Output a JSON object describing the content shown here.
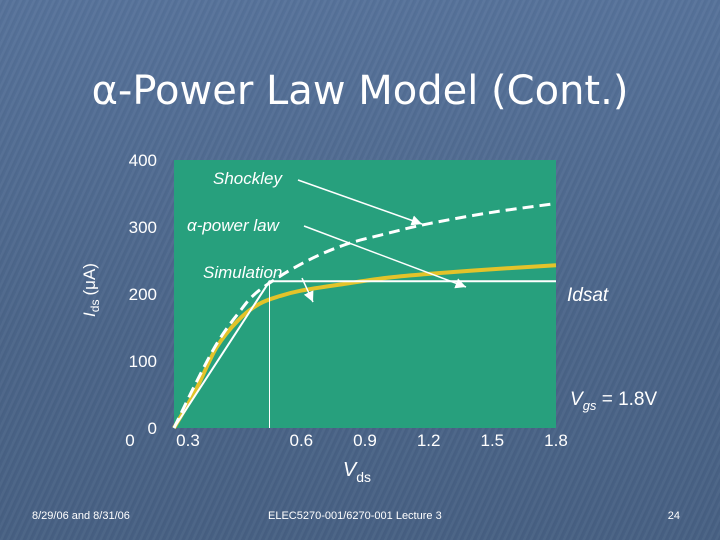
{
  "slide": {
    "title": "α-Power Law Model (Cont.)",
    "footer_left": "8/29/06 and 8/31/06",
    "footer_center": "ELEC5270-001/6270-001 Lecture 3",
    "footer_right": "24"
  },
  "colors": {
    "plot_bg": "#27a07d",
    "simulation": "#e3c32a",
    "models": "#ffffff"
  },
  "chart_data": {
    "type": "line",
    "xlabel_main": "V",
    "xlabel_sub": "ds",
    "ylabel_main": "I",
    "ylabel_sub": "ds",
    "ylabel_unit": "(μA)",
    "xlim": [
      0,
      1.8
    ],
    "ylim": [
      0,
      400
    ],
    "x_ticks": [
      "0",
      "0.3",
      "0.6",
      "0.9",
      "1.2",
      "1.5",
      "1.8"
    ],
    "x_tick_values": [
      0,
      0.3,
      0.6,
      0.9,
      1.2,
      1.5,
      1.8
    ],
    "y_ticks": [
      "0",
      "100",
      "200",
      "300",
      "400"
    ],
    "y_tick_values": [
      0,
      100,
      200,
      300,
      400
    ],
    "series": [
      {
        "name": "Shockley",
        "style": "dashed",
        "x": [
          0,
          0.1,
          0.2,
          0.3,
          0.4,
          0.6,
          0.8,
          1.0,
          1.2,
          1.5,
          1.8
        ],
        "y": [
          0,
          65,
          125,
          170,
          205,
          245,
          273,
          290,
          305,
          322,
          335
        ]
      },
      {
        "name": "α-power law",
        "style": "solid",
        "x": [
          0,
          0.45,
          0.45,
          1.8
        ],
        "y": [
          0,
          219,
          219,
          219
        ]
      },
      {
        "name": "Simulation",
        "style": "solid",
        "x": [
          0,
          0.1,
          0.2,
          0.3,
          0.4,
          0.5,
          0.6,
          0.8,
          1.0,
          1.2,
          1.5,
          1.8
        ],
        "y": [
          0,
          55,
          120,
          160,
          185,
          197,
          205,
          215,
          224,
          230,
          237,
          243
        ]
      }
    ],
    "annotations": {
      "shockley": "Shockley",
      "alpha": "α-power law",
      "simulation": "Simulation",
      "idsat": "Idsat",
      "vgs_main": "V",
      "vgs_sub": "gs",
      "vgs_value": " = 1.8V"
    }
  }
}
